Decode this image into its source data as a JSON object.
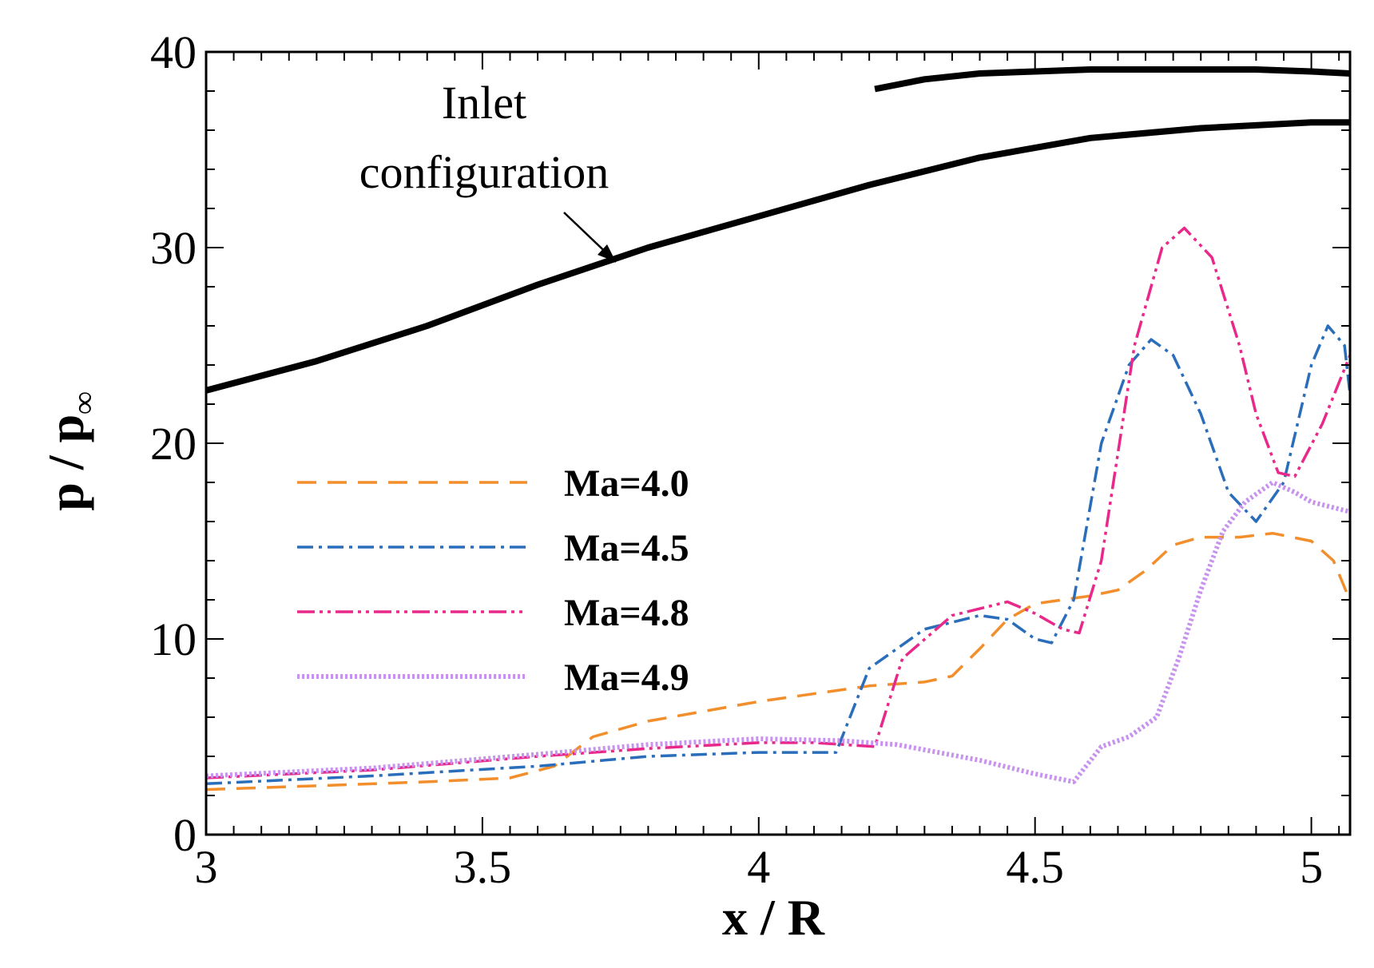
{
  "chart_data": {
    "type": "line",
    "title": "",
    "xlabel": "x / R",
    "ylabel_main": "p / p",
    "ylabel_sub": "∞",
    "xlim": [
      3,
      5.07
    ],
    "ylim": [
      0,
      40
    ],
    "xticks": [
      3,
      3.5,
      4,
      4.5,
      5
    ],
    "xtick_labels": [
      "3",
      "3.5",
      "4",
      "4.5",
      "5"
    ],
    "yticks": [
      0,
      10,
      20,
      30,
      40
    ],
    "ytick_labels": [
      "0",
      "10",
      "20",
      "30",
      "40"
    ],
    "grid": false,
    "legend_position": "middle-left",
    "series": [
      {
        "name": "Ma=4.0",
        "color": "#f28e2b",
        "dash": "24,14",
        "x": [
          3.0,
          3.2,
          3.4,
          3.55,
          3.63,
          3.7,
          3.8,
          4.0,
          4.2,
          4.3,
          4.35,
          4.4,
          4.45,
          4.5,
          4.55,
          4.6,
          4.65,
          4.7,
          4.75,
          4.8,
          4.87,
          4.93,
          5.0,
          5.04,
          5.065
        ],
        "values": [
          2.3,
          2.5,
          2.7,
          2.9,
          3.5,
          5.0,
          5.8,
          6.8,
          7.6,
          7.8,
          8.1,
          9.5,
          11.0,
          11.8,
          12.0,
          12.2,
          12.5,
          13.5,
          14.8,
          15.2,
          15.2,
          15.4,
          15.0,
          14.0,
          12.3
        ]
      },
      {
        "name": "Ma=4.5",
        "color": "#2a6ebb",
        "dash": "20,7,4,7",
        "x": [
          3.0,
          3.3,
          3.6,
          3.8,
          4.0,
          4.14,
          4.2,
          4.3,
          4.4,
          4.45,
          4.5,
          4.53,
          4.57,
          4.62,
          4.67,
          4.71,
          4.75,
          4.8,
          4.85,
          4.9,
          4.95,
          5.0,
          5.03,
          5.06,
          5.07
        ],
        "values": [
          2.6,
          3.0,
          3.5,
          4.0,
          4.2,
          4.2,
          8.5,
          10.5,
          11.2,
          11.0,
          10.0,
          9.8,
          12.0,
          20.0,
          24.0,
          25.3,
          24.5,
          21.5,
          17.5,
          16.0,
          18.0,
          24.0,
          26.0,
          25.0,
          22.5
        ]
      },
      {
        "name": "Ma=4.8",
        "color": "#e8288a",
        "dash": "22,6,4,6,4,6",
        "x": [
          3.0,
          3.3,
          3.6,
          3.8,
          4.0,
          4.1,
          4.21,
          4.26,
          4.35,
          4.45,
          4.5,
          4.55,
          4.58,
          4.62,
          4.68,
          4.73,
          4.77,
          4.82,
          4.87,
          4.9,
          4.94,
          4.97,
          5.02,
          5.07
        ],
        "values": [
          2.9,
          3.3,
          4.0,
          4.4,
          4.7,
          4.7,
          4.5,
          9.0,
          11.2,
          11.9,
          11.3,
          10.5,
          10.3,
          14.0,
          25.0,
          30.0,
          31.0,
          29.5,
          25.0,
          21.5,
          18.5,
          18.3,
          21.0,
          24.5
        ]
      },
      {
        "name": "Ma=4.9",
        "color": "#c893ee",
        "dash": "3,3",
        "x": [
          3.0,
          3.3,
          3.6,
          3.8,
          4.0,
          4.15,
          4.25,
          4.4,
          4.5,
          4.57,
          4.62,
          4.67,
          4.72,
          4.76,
          4.8,
          4.84,
          4.88,
          4.93,
          4.97,
          5.0,
          5.07
        ],
        "values": [
          3.0,
          3.4,
          4.1,
          4.6,
          4.9,
          4.8,
          4.6,
          3.8,
          3.1,
          2.7,
          4.5,
          5.0,
          6.0,
          9.0,
          12.5,
          15.5,
          17.0,
          18.0,
          17.5,
          17.0,
          16.5
        ]
      }
    ],
    "configuration": {
      "label_line1": "Inlet",
      "label_line2": "configuration",
      "color": "#000000",
      "lower_wall": {
        "x": [
          3.0,
          3.2,
          3.4,
          3.6,
          3.8,
          4.0,
          4.2,
          4.4,
          4.6,
          4.8,
          5.0,
          5.07
        ],
        "values": [
          22.7,
          24.2,
          26.0,
          28.1,
          30.0,
          31.6,
          33.2,
          34.6,
          35.6,
          36.1,
          36.4,
          36.4
        ]
      },
      "upper_wall": {
        "x": [
          4.21,
          4.3,
          4.4,
          4.5,
          4.6,
          4.7,
          4.8,
          4.9,
          5.0,
          5.07
        ],
        "values": [
          38.1,
          38.6,
          38.9,
          39.0,
          39.1,
          39.1,
          39.1,
          39.1,
          39.0,
          38.9
        ]
      }
    }
  }
}
